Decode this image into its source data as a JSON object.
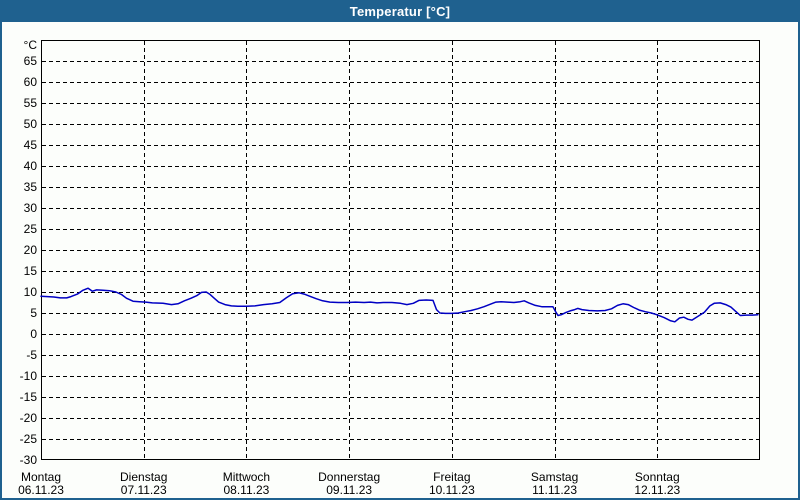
{
  "title_bar": {
    "title": "Temperatur [°C]"
  },
  "colors": {
    "frame_blue": "#1F618F",
    "background": "#FCFEFB",
    "grid": "#000000",
    "line": "#0000C3",
    "title_text": "#FFFFFF"
  },
  "chart_data": {
    "type": "line",
    "title": "Temperatur [°C]",
    "ylabel": "°C",
    "xlabel": "",
    "grid": "dashed",
    "legend": "none",
    "y_axis": {
      "min": -30,
      "max": 70,
      "tick_step": 5,
      "unit_label": "°C",
      "ticks": [
        65,
        60,
        55,
        50,
        45,
        40,
        35,
        30,
        25,
        20,
        15,
        10,
        5,
        0,
        -5,
        -10,
        -15,
        -20,
        -25,
        -30
      ]
    },
    "x_axis": {
      "total_hours": 168,
      "days": [
        {
          "name": "Montag",
          "date": "06.11.23"
        },
        {
          "name": "Dienstag",
          "date": "07.11.23"
        },
        {
          "name": "Mittwoch",
          "date": "08.11.23"
        },
        {
          "name": "Donnerstag",
          "date": "09.11.23"
        },
        {
          "name": "Freitag",
          "date": "10.11.23"
        },
        {
          "name": "Samstag",
          "date": "11.11.23"
        },
        {
          "name": "Sonntag",
          "date": "12.11.23"
        }
      ]
    },
    "series": [
      {
        "name": "Temperatur",
        "unit": "°C",
        "points": [
          [
            0,
            9.0
          ],
          [
            1.5,
            8.9
          ],
          [
            3,
            8.8
          ],
          [
            4.5,
            8.6
          ],
          [
            6,
            8.6
          ],
          [
            7,
            8.9
          ],
          [
            8.5,
            9.5
          ],
          [
            9.8,
            10.4
          ],
          [
            11,
            10.9
          ],
          [
            12,
            10.2
          ],
          [
            13,
            10.5
          ],
          [
            14.5,
            10.4
          ],
          [
            16,
            10.3
          ],
          [
            17.5,
            10.0
          ],
          [
            18.8,
            9.4
          ],
          [
            20,
            8.5
          ],
          [
            21.5,
            7.8
          ],
          [
            23,
            7.7
          ],
          [
            24.5,
            7.6
          ],
          [
            26,
            7.4
          ],
          [
            28.5,
            7.3
          ],
          [
            30.5,
            7.0
          ],
          [
            32,
            7.2
          ],
          [
            33.5,
            7.9
          ],
          [
            35,
            8.5
          ],
          [
            36.5,
            9.2
          ],
          [
            37.5,
            9.9
          ],
          [
            38.6,
            10.0
          ],
          [
            39.4,
            9.5
          ],
          [
            40.4,
            8.6
          ],
          [
            41.5,
            7.6
          ],
          [
            43,
            7.0
          ],
          [
            44.5,
            6.7
          ],
          [
            46,
            6.6
          ],
          [
            48,
            6.6
          ],
          [
            50,
            6.7
          ],
          [
            52,
            7.0
          ],
          [
            54,
            7.2
          ],
          [
            55.8,
            7.5
          ],
          [
            57.3,
            8.6
          ],
          [
            58.8,
            9.6
          ],
          [
            60.3,
            9.8
          ],
          [
            61.5,
            9.5
          ],
          [
            63,
            8.9
          ],
          [
            64.3,
            8.4
          ],
          [
            65.8,
            7.9
          ],
          [
            67.5,
            7.6
          ],
          [
            69.5,
            7.5
          ],
          [
            71.5,
            7.5
          ],
          [
            73.5,
            7.6
          ],
          [
            75.5,
            7.5
          ],
          [
            77,
            7.6
          ],
          [
            78.5,
            7.4
          ],
          [
            80,
            7.5
          ],
          [
            82,
            7.5
          ],
          [
            84,
            7.3
          ],
          [
            85.5,
            7.0
          ],
          [
            87,
            7.3
          ],
          [
            88.3,
            8.0
          ],
          [
            90,
            8.1
          ],
          [
            91.6,
            8.0
          ],
          [
            92.4,
            5.8
          ],
          [
            93.2,
            5.0
          ],
          [
            94.5,
            4.9
          ],
          [
            96,
            4.9
          ],
          [
            97.5,
            5.0
          ],
          [
            99,
            5.3
          ],
          [
            100.5,
            5.6
          ],
          [
            102,
            6.0
          ],
          [
            103.5,
            6.5
          ],
          [
            105,
            7.1
          ],
          [
            106.3,
            7.6
          ],
          [
            107.5,
            7.7
          ],
          [
            109,
            7.6
          ],
          [
            110.5,
            7.5
          ],
          [
            112,
            7.7
          ],
          [
            112.9,
            7.9
          ],
          [
            114,
            7.4
          ],
          [
            115.5,
            6.8
          ],
          [
            117,
            6.5
          ],
          [
            118.6,
            6.5
          ],
          [
            119.6,
            6.5
          ],
          [
            120.2,
            5.4
          ],
          [
            120.8,
            4.4
          ],
          [
            121.6,
            4.6
          ],
          [
            122.6,
            5.1
          ],
          [
            123.6,
            5.5
          ],
          [
            124.7,
            5.8
          ],
          [
            125.4,
            6.1
          ],
          [
            126.4,
            5.8
          ],
          [
            128,
            5.6
          ],
          [
            130,
            5.5
          ],
          [
            131.8,
            5.6
          ],
          [
            133.3,
            6.0
          ],
          [
            134.7,
            6.8
          ],
          [
            136,
            7.2
          ],
          [
            137.2,
            7.0
          ],
          [
            138.5,
            6.3
          ],
          [
            139.8,
            5.7
          ],
          [
            141.2,
            5.3
          ],
          [
            142.6,
            5.0
          ],
          [
            143.6,
            4.7
          ],
          [
            144.6,
            4.3
          ],
          [
            145.6,
            3.9
          ],
          [
            147,
            3.2
          ],
          [
            148.1,
            2.9
          ],
          [
            149.2,
            3.8
          ],
          [
            150.2,
            4.0
          ],
          [
            151.2,
            3.5
          ],
          [
            152.1,
            3.3
          ],
          [
            153.5,
            4.2
          ],
          [
            155,
            5.2
          ],
          [
            156.3,
            6.7
          ],
          [
            157.3,
            7.3
          ],
          [
            158.7,
            7.4
          ],
          [
            160,
            7.0
          ],
          [
            161.2,
            6.4
          ],
          [
            162.3,
            5.4
          ],
          [
            163.4,
            4.4
          ],
          [
            164.8,
            4.5
          ],
          [
            166.2,
            4.5
          ],
          [
            167.5,
            4.6
          ]
        ]
      }
    ]
  }
}
